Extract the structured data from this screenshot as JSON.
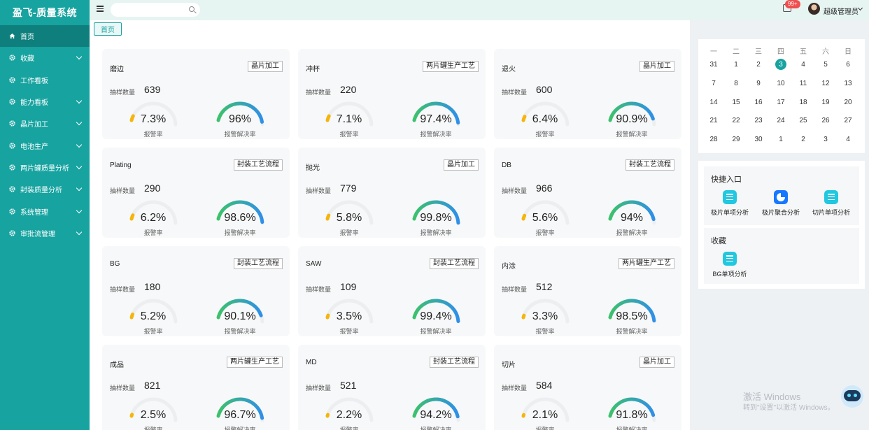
{
  "app": {
    "title": "盈飞-质量系统"
  },
  "sidebar": {
    "items": [
      {
        "label": "首页",
        "icon": "home-icon",
        "active": true,
        "expandable": false
      },
      {
        "label": "收藏",
        "icon": "gear-icon",
        "active": false,
        "expandable": true
      },
      {
        "label": "工作看板",
        "icon": "gear-icon",
        "active": false,
        "expandable": false
      },
      {
        "label": "能力看板",
        "icon": "gear-icon",
        "active": false,
        "expandable": true
      },
      {
        "label": "晶片加工",
        "icon": "gear-icon",
        "active": false,
        "expandable": true
      },
      {
        "label": "电池生产",
        "icon": "gear-icon",
        "active": false,
        "expandable": true
      },
      {
        "label": "两片罐质量分析",
        "icon": "gear-icon",
        "active": false,
        "expandable": true
      },
      {
        "label": "封装质量分析",
        "icon": "gear-icon",
        "active": false,
        "expandable": true
      },
      {
        "label": "系统管理",
        "icon": "gear-icon",
        "active": false,
        "expandable": true
      },
      {
        "label": "审批流管理",
        "icon": "gear-icon",
        "active": false,
        "expandable": true
      }
    ]
  },
  "topbar": {
    "search": {
      "value": "",
      "placeholder": ""
    },
    "notifications": {
      "badge": "99+"
    },
    "user": {
      "name": "超级管理员"
    }
  },
  "tabs": [
    {
      "label": "首页"
    }
  ],
  "cards": {
    "sample_label": "抽样数量",
    "alarm_rate_label": "报警率",
    "resolve_rate_label": "报警解决率",
    "items": [
      {
        "title": "磨边",
        "tag": "晶片加工",
        "sample": "639",
        "alarm_rate": "7.3%",
        "alarm_rate_value": 7.3,
        "resolve_rate": "96%",
        "resolve_rate_value": 96
      },
      {
        "title": "冲杯",
        "tag": "两片罐生产工艺",
        "sample": "220",
        "alarm_rate": "7.1%",
        "alarm_rate_value": 7.1,
        "resolve_rate": "97.4%",
        "resolve_rate_value": 97.4
      },
      {
        "title": "退火",
        "tag": "晶片加工",
        "sample": "600",
        "alarm_rate": "6.4%",
        "alarm_rate_value": 6.4,
        "resolve_rate": "90.9%",
        "resolve_rate_value": 90.9
      },
      {
        "title": "Plating",
        "tag": "封装工艺流程",
        "sample": "290",
        "alarm_rate": "6.2%",
        "alarm_rate_value": 6.2,
        "resolve_rate": "98.6%",
        "resolve_rate_value": 98.6
      },
      {
        "title": "抛光",
        "tag": "晶片加工",
        "sample": "779",
        "alarm_rate": "5.8%",
        "alarm_rate_value": 5.8,
        "resolve_rate": "99.8%",
        "resolve_rate_value": 99.8
      },
      {
        "title": "DB",
        "tag": "封装工艺流程",
        "sample": "966",
        "alarm_rate": "5.6%",
        "alarm_rate_value": 5.6,
        "resolve_rate": "94%",
        "resolve_rate_value": 94
      },
      {
        "title": "BG",
        "tag": "封装工艺流程",
        "sample": "180",
        "alarm_rate": "5.2%",
        "alarm_rate_value": 5.2,
        "resolve_rate": "90.1%",
        "resolve_rate_value": 90.1
      },
      {
        "title": "SAW",
        "tag": "封装工艺流程",
        "sample": "109",
        "alarm_rate": "3.5%",
        "alarm_rate_value": 3.5,
        "resolve_rate": "99.4%",
        "resolve_rate_value": 99.4
      },
      {
        "title": "内涂",
        "tag": "两片罐生产工艺",
        "sample": "512",
        "alarm_rate": "3.3%",
        "alarm_rate_value": 3.3,
        "resolve_rate": "98.5%",
        "resolve_rate_value": 98.5
      },
      {
        "title": "成品",
        "tag": "两片罐生产工艺",
        "sample": "821",
        "alarm_rate": "2.5%",
        "alarm_rate_value": 2.5,
        "resolve_rate": "96.7%",
        "resolve_rate_value": 96.7
      },
      {
        "title": "MD",
        "tag": "封装工艺流程",
        "sample": "521",
        "alarm_rate": "2.2%",
        "alarm_rate_value": 2.2,
        "resolve_rate": "94.2%",
        "resolve_rate_value": 94.2
      },
      {
        "title": "切片",
        "tag": "晶片加工",
        "sample": "584",
        "alarm_rate": "2.1%",
        "alarm_rate_value": 2.1,
        "resolve_rate": "91.8%",
        "resolve_rate_value": 91.8
      }
    ]
  },
  "calendar": {
    "weekdays": [
      "一",
      "二",
      "三",
      "四",
      "五",
      "六",
      "日"
    ],
    "weeks": [
      [
        "31",
        "1",
        "2",
        "3",
        "4",
        "5",
        "6"
      ],
      [
        "7",
        "8",
        "9",
        "10",
        "11",
        "12",
        "13"
      ],
      [
        "14",
        "15",
        "16",
        "17",
        "18",
        "19",
        "20"
      ],
      [
        "21",
        "22",
        "23",
        "24",
        "25",
        "26",
        "27"
      ],
      [
        "28",
        "29",
        "30",
        "1",
        "2",
        "3",
        "4"
      ]
    ],
    "today": "3"
  },
  "quick_entry": {
    "title": "快捷入口",
    "items": [
      {
        "label": "极片单项分析",
        "icon": "list-icon",
        "color": "#22c7e0"
      },
      {
        "label": "极片聚合分析",
        "icon": "pie-chart-icon",
        "color": "#1677ff"
      },
      {
        "label": "切片单项分析",
        "icon": "list-icon",
        "color": "#22c7e0"
      }
    ]
  },
  "favorites": {
    "title": "收藏",
    "items": [
      {
        "label": "BG单项分析",
        "icon": "list-icon",
        "color": "#22c7e0"
      }
    ]
  },
  "watermark": {
    "line1": "激活 Windows",
    "line2": "转到\"设置\"以激活 Windows。"
  },
  "colors": {
    "primary": "#17a3a0",
    "alarm": "#f5b50a",
    "resolve_start": "#3cc26b",
    "resolve_end": "#2f8fe8"
  }
}
